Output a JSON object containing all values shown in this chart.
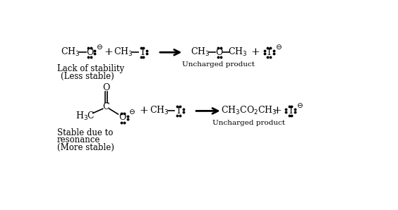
{
  "bg_color": "#ffffff",
  "fig_width": 5.64,
  "fig_height": 2.98,
  "dpi": 100,
  "label1_r1": "Lack of stability",
  "label2_r1": "(Less stable)",
  "label1_r2": "Stable due to",
  "label2_r2": "resonance",
  "label3_r2": "(More stable)",
  "uncharged": "Uncharged product"
}
